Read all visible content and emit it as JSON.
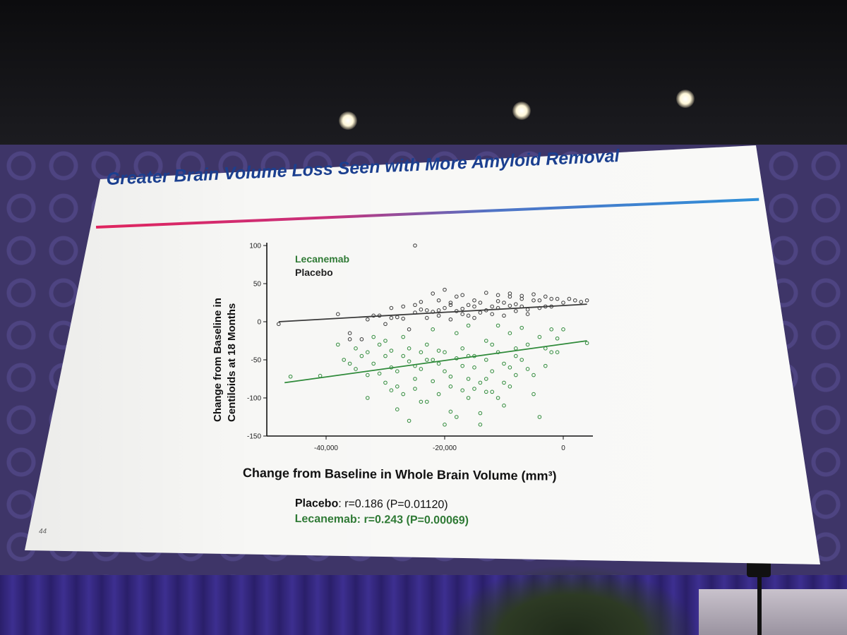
{
  "slide": {
    "title": "Greater Brain Volume Loss Seen with More Amyloid Removal",
    "number": "44",
    "xlabel": "Change from Baseline in Whole Brain Volume (mm³)",
    "ylabel_line1": "Change from Baseline in",
    "ylabel_line2": "Centiloids at 18 Months",
    "stats": {
      "placebo_name": "Placebo",
      "placebo_value": ": r=0.186 (P=0.01120)",
      "lecanemab_name": "Lecanemab:",
      "lecanemab_value": " r=0.243 (P=0.00069)"
    }
  },
  "colors": {
    "title": "#1b3f8f",
    "placebo": "#3a3a3a",
    "lecanemab": "#2f8a3a",
    "accent_pink": "#e0245e",
    "accent_blue": "#2f8fd8"
  },
  "chart_data": {
    "type": "scatter",
    "xlim": [
      -50000,
      5000
    ],
    "ylim": [
      -150,
      100
    ],
    "x_ticks": [
      {
        "value": -40000,
        "label": "-40,000"
      },
      {
        "value": -20000,
        "label": "-20,000"
      },
      {
        "value": 0,
        "label": "0"
      }
    ],
    "y_ticks": [
      {
        "value": 100,
        "label": "100"
      },
      {
        "value": 50,
        "label": "50"
      },
      {
        "value": 0,
        "label": "0"
      },
      {
        "value": -50,
        "label": "-50"
      },
      {
        "value": -100,
        "label": "-100"
      },
      {
        "value": -150,
        "label": "-150"
      }
    ],
    "legend": [
      "Lecanemab",
      "Placebo"
    ],
    "series": [
      {
        "name": "Placebo",
        "fit": [
          [
            -48000,
            0
          ],
          [
            4000,
            23
          ]
        ],
        "points": [
          [
            -48000,
            -3
          ],
          [
            -38000,
            10
          ],
          [
            -31000,
            8
          ],
          [
            -33000,
            3
          ],
          [
            -36000,
            -15
          ],
          [
            -36000,
            -23
          ],
          [
            -34000,
            -23
          ],
          [
            -32000,
            8
          ],
          [
            -30000,
            -3
          ],
          [
            -29000,
            5
          ],
          [
            -28000,
            6
          ],
          [
            -27000,
            4
          ],
          [
            -26000,
            -10
          ],
          [
            -25000,
            12
          ],
          [
            -24000,
            16
          ],
          [
            -23000,
            15
          ],
          [
            -22000,
            13
          ],
          [
            -21000,
            15
          ],
          [
            -20000,
            18
          ],
          [
            -19000,
            22
          ],
          [
            -18000,
            14
          ],
          [
            -17000,
            17
          ],
          [
            -16000,
            22
          ],
          [
            -15000,
            20
          ],
          [
            -14000,
            25
          ],
          [
            -13000,
            15
          ],
          [
            -12000,
            20
          ],
          [
            -11000,
            27
          ],
          [
            -10000,
            25
          ],
          [
            -9000,
            33
          ],
          [
            -8000,
            23
          ],
          [
            -7000,
            30
          ],
          [
            -6000,
            16
          ],
          [
            -5000,
            28
          ],
          [
            -4000,
            28
          ],
          [
            -3000,
            20
          ],
          [
            -2000,
            30
          ],
          [
            -1000,
            30
          ],
          [
            0,
            25
          ],
          [
            1000,
            30
          ],
          [
            2000,
            28
          ],
          [
            3000,
            26
          ],
          [
            4000,
            28
          ],
          [
            -22000,
            37
          ],
          [
            -20000,
            42
          ],
          [
            -18000,
            33
          ],
          [
            -17000,
            35
          ],
          [
            -15000,
            28
          ],
          [
            -13000,
            38
          ],
          [
            -11000,
            35
          ],
          [
            -9000,
            37
          ],
          [
            -7000,
            34
          ],
          [
            -5000,
            36
          ],
          [
            -3000,
            33
          ],
          [
            -23000,
            5
          ],
          [
            -21000,
            8
          ],
          [
            -19000,
            3
          ],
          [
            -17000,
            10
          ],
          [
            -15000,
            5
          ],
          [
            -14000,
            12
          ],
          [
            -12000,
            10
          ],
          [
            -10000,
            8
          ],
          [
            -8000,
            14
          ],
          [
            -6000,
            10
          ],
          [
            -25000,
            22
          ],
          [
            -27000,
            20
          ],
          [
            -29000,
            18
          ],
          [
            -11000,
            18
          ],
          [
            -9000,
            21
          ],
          [
            -7000,
            20
          ],
          [
            -4000,
            18
          ],
          [
            -16000,
            8
          ],
          [
            -19000,
            25
          ],
          [
            -21000,
            28
          ],
          [
            -24000,
            26
          ],
          [
            -2000,
            20
          ],
          [
            -25000,
            100
          ]
        ]
      },
      {
        "name": "Lecanemab",
        "fit": [
          [
            -47000,
            -80
          ],
          [
            4000,
            -25
          ]
        ],
        "points": [
          [
            -46000,
            -72
          ],
          [
            -41000,
            -71
          ],
          [
            -37000,
            -50
          ],
          [
            -36000,
            -55
          ],
          [
            -35000,
            -35
          ],
          [
            -35000,
            -62
          ],
          [
            -34000,
            -45
          ],
          [
            -33000,
            -70
          ],
          [
            -33000,
            -100
          ],
          [
            -32000,
            -55
          ],
          [
            -31000,
            -30
          ],
          [
            -31000,
            -68
          ],
          [
            -30000,
            -45
          ],
          [
            -30000,
            -80
          ],
          [
            -29000,
            -38
          ],
          [
            -29000,
            -60
          ],
          [
            -28000,
            -85
          ],
          [
            -28000,
            -115
          ],
          [
            -27000,
            -45
          ],
          [
            -27000,
            -95
          ],
          [
            -26000,
            -52
          ],
          [
            -26000,
            -35
          ],
          [
            -25000,
            -75
          ],
          [
            -25000,
            -88
          ],
          [
            -24000,
            -40
          ],
          [
            -24000,
            -62
          ],
          [
            -23000,
            -30
          ],
          [
            -23000,
            -105
          ],
          [
            -22000,
            -50
          ],
          [
            -22000,
            -78
          ],
          [
            -21000,
            -55
          ],
          [
            -21000,
            -95
          ],
          [
            -20000,
            -65
          ],
          [
            -20000,
            -40
          ],
          [
            -19000,
            -85
          ],
          [
            -19000,
            -118
          ],
          [
            -18000,
            -48
          ],
          [
            -18000,
            -125
          ],
          [
            -17000,
            -35
          ],
          [
            -17000,
            -58
          ],
          [
            -16000,
            -75
          ],
          [
            -16000,
            -100
          ],
          [
            -15000,
            -45
          ],
          [
            -15000,
            -60
          ],
          [
            -14000,
            -80
          ],
          [
            -14000,
            -135
          ],
          [
            -13000,
            -50
          ],
          [
            -13000,
            -92
          ],
          [
            -12000,
            -30
          ],
          [
            -12000,
            -65
          ],
          [
            -11000,
            -40
          ],
          [
            -11000,
            -100
          ],
          [
            -10000,
            -55
          ],
          [
            -10000,
            -80
          ],
          [
            -9000,
            -15
          ],
          [
            -9000,
            -60
          ],
          [
            -8000,
            -35
          ],
          [
            -8000,
            -70
          ],
          [
            -7000,
            -50
          ],
          [
            -6000,
            -30
          ],
          [
            -5000,
            -95
          ],
          [
            -4000,
            -20
          ],
          [
            -3000,
            -58
          ],
          [
            -2000,
            -10
          ],
          [
            -1000,
            -40
          ],
          [
            0,
            -10
          ],
          [
            4000,
            -28
          ],
          [
            -38000,
            -30
          ],
          [
            -27000,
            -20
          ],
          [
            -22000,
            -10
          ],
          [
            -18000,
            -15
          ],
          [
            -16000,
            -5
          ],
          [
            -13000,
            -25
          ],
          [
            -11000,
            -5
          ],
          [
            -7000,
            -8
          ],
          [
            -4000,
            -125
          ],
          [
            -26000,
            -130
          ],
          [
            -24000,
            -105
          ],
          [
            -20000,
            -135
          ],
          [
            -14000,
            -120
          ],
          [
            -10000,
            -110
          ],
          [
            -30000,
            -25
          ],
          [
            -32000,
            -20
          ],
          [
            -28000,
            -65
          ],
          [
            -19000,
            -72
          ],
          [
            -15000,
            -88
          ],
          [
            -12000,
            -92
          ],
          [
            -8000,
            -45
          ],
          [
            -6000,
            -62
          ],
          [
            -3000,
            -35
          ],
          [
            -1000,
            -22
          ],
          [
            -23000,
            -50
          ],
          [
            -21000,
            -38
          ],
          [
            -17000,
            -90
          ],
          [
            -13000,
            -75
          ],
          [
            -9000,
            -85
          ],
          [
            -5000,
            -70
          ],
          [
            -2000,
            -40
          ],
          [
            -33000,
            -40
          ],
          [
            -29000,
            -90
          ],
          [
            -25000,
            -58
          ],
          [
            -16000,
            -45
          ]
        ]
      }
    ]
  }
}
